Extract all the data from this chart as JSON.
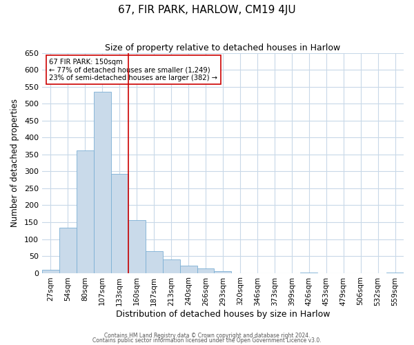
{
  "title": "67, FIR PARK, HARLOW, CM19 4JU",
  "subtitle": "Size of property relative to detached houses in Harlow",
  "xlabel": "Distribution of detached houses by size in Harlow",
  "ylabel": "Number of detached properties",
  "bar_labels": [
    "27sqm",
    "54sqm",
    "80sqm",
    "107sqm",
    "133sqm",
    "160sqm",
    "187sqm",
    "213sqm",
    "240sqm",
    "266sqm",
    "293sqm",
    "320sqm",
    "346sqm",
    "373sqm",
    "399sqm",
    "426sqm",
    "453sqm",
    "479sqm",
    "506sqm",
    "532sqm",
    "559sqm"
  ],
  "bar_values": [
    10,
    133,
    362,
    535,
    293,
    157,
    65,
    40,
    22,
    14,
    5,
    0,
    0,
    0,
    0,
    1,
    0,
    0,
    0,
    0,
    2
  ],
  "bar_color": "#c9daea",
  "bar_edge_color": "#7bafd4",
  "vline_x": 4.5,
  "vline_color": "#cc0000",
  "annotation_title": "67 FIR PARK: 150sqm",
  "annotation_line1": "← 77% of detached houses are smaller (1,249)",
  "annotation_line2": "23% of semi-detached houses are larger (382) →",
  "annotation_box_color": "#ffffff",
  "annotation_box_edge": "#cc0000",
  "ylim": [
    0,
    650
  ],
  "yticks": [
    0,
    50,
    100,
    150,
    200,
    250,
    300,
    350,
    400,
    450,
    500,
    550,
    600,
    650
  ],
  "footer1": "Contains HM Land Registry data © Crown copyright and database right 2024.",
  "footer2": "Contains public sector information licensed under the Open Government Licence v3.0.",
  "bg_color": "#ffffff",
  "grid_color": "#c8d8e8",
  "title_fontsize": 11,
  "subtitle_fontsize": 9,
  "ylabel_fontsize": 8.5,
  "xlabel_fontsize": 9,
  "tick_fontsize": 8,
  "xtick_fontsize": 7.5
}
